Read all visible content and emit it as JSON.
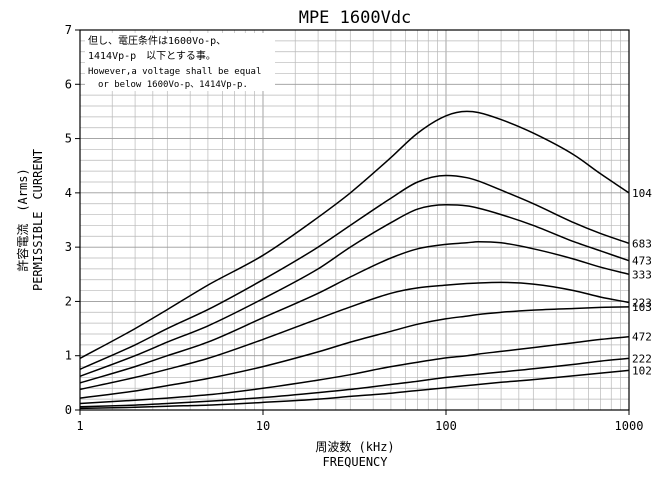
{
  "chart_data": {
    "type": "line",
    "title": "MPE 1600Vdc",
    "xlabel": "周波数 (kHz)",
    "xlabel2": "FREQUENCY",
    "ylabel": "許容電流　(Arms)",
    "ylabel2": "PERMISSIBLE　CURRENT",
    "xscale": "log",
    "xlim": [
      1,
      1000
    ],
    "ylim": [
      0,
      7
    ],
    "x_ticks": [
      "1",
      "10",
      "100",
      "1000"
    ],
    "y_ticks": [
      "0",
      "1",
      "2",
      "3",
      "4",
      "5",
      "6",
      "7"
    ],
    "grid": true,
    "note_lines": [
      "但し、電圧条件は1600Vo-p、",
      "1414Vp-p　以下とする事。",
      "However,a voltage shall be equal",
      "or below 1600Vo-p、1414Vp-p."
    ],
    "x": [
      1,
      2,
      3,
      5,
      10,
      20,
      30,
      50,
      70,
      100,
      130,
      150,
      200,
      300,
      500,
      700,
      1000
    ],
    "series": [
      {
        "name": "104",
        "values": [
          0.95,
          1.5,
          1.85,
          2.3,
          2.85,
          3.55,
          4.0,
          4.65,
          5.1,
          5.42,
          5.5,
          5.48,
          5.35,
          5.1,
          4.7,
          4.35,
          4.0
        ]
      },
      {
        "name": "683",
        "values": [
          0.75,
          1.2,
          1.5,
          1.85,
          2.4,
          3.0,
          3.4,
          3.9,
          4.2,
          4.32,
          4.28,
          4.22,
          4.05,
          3.8,
          3.45,
          3.25,
          3.07
        ]
      },
      {
        "name": "473",
        "values": [
          0.62,
          1.0,
          1.25,
          1.55,
          2.05,
          2.6,
          3.0,
          3.45,
          3.7,
          3.78,
          3.76,
          3.72,
          3.6,
          3.4,
          3.1,
          2.93,
          2.75
        ]
      },
      {
        "name": "333",
        "values": [
          0.5,
          0.8,
          1.0,
          1.25,
          1.7,
          2.15,
          2.45,
          2.8,
          2.97,
          3.05,
          3.08,
          3.1,
          3.08,
          2.97,
          2.78,
          2.63,
          2.5
        ]
      },
      {
        "name": "223",
        "values": [
          0.38,
          0.6,
          0.75,
          0.95,
          1.3,
          1.68,
          1.9,
          2.15,
          2.25,
          2.3,
          2.33,
          2.34,
          2.35,
          2.32,
          2.2,
          2.08,
          1.98
        ]
      },
      {
        "name": "103",
        "values": [
          0.22,
          0.35,
          0.45,
          0.58,
          0.8,
          1.07,
          1.25,
          1.45,
          1.58,
          1.68,
          1.73,
          1.76,
          1.8,
          1.84,
          1.87,
          1.89,
          1.9
        ]
      },
      {
        "name": "472",
        "values": [
          0.12,
          0.18,
          0.22,
          0.28,
          0.4,
          0.55,
          0.65,
          0.8,
          0.88,
          0.96,
          1.0,
          1.03,
          1.08,
          1.15,
          1.24,
          1.3,
          1.35
        ]
      },
      {
        "name": "222",
        "values": [
          0.06,
          0.09,
          0.12,
          0.16,
          0.23,
          0.32,
          0.38,
          0.47,
          0.53,
          0.6,
          0.64,
          0.66,
          0.7,
          0.76,
          0.84,
          0.9,
          0.95
        ]
      },
      {
        "name": "102",
        "values": [
          0.03,
          0.05,
          0.07,
          0.09,
          0.14,
          0.2,
          0.25,
          0.31,
          0.36,
          0.41,
          0.45,
          0.47,
          0.51,
          0.56,
          0.63,
          0.68,
          0.73
        ]
      }
    ]
  }
}
